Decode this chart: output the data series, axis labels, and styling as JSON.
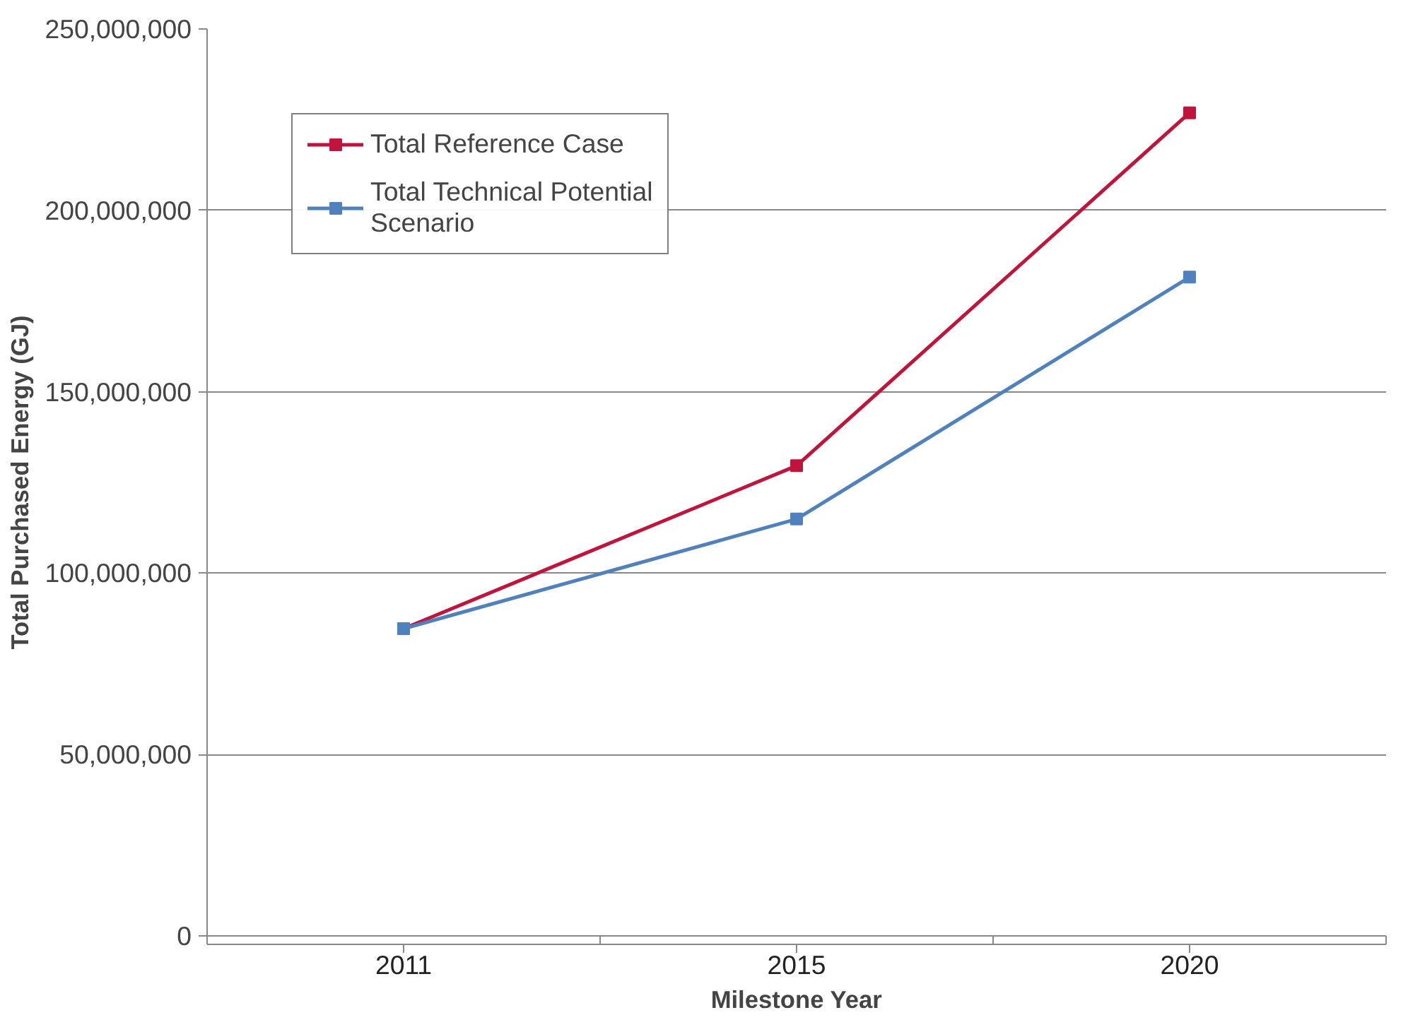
{
  "chart_data": {
    "type": "line",
    "xlabel": "Milestone Year",
    "ylabel": "Total Purchased Energy (GJ)",
    "categories": [
      "2011",
      "2015",
      "2020"
    ],
    "series": [
      {
        "name": "Total Reference Case",
        "color": "#c0143c",
        "values": [
          84700000,
          129600000,
          226900000
        ]
      },
      {
        "name": "Total Technical Potential Scenario",
        "color": "#4f81bd",
        "values": [
          84700000,
          114900000,
          181600000
        ]
      }
    ],
    "ylim": [
      0,
      250000000
    ],
    "yticks": [
      {
        "value": 0,
        "label": "0"
      },
      {
        "value": 50000000,
        "label": "50,000,000"
      },
      {
        "value": 100000000,
        "label": "100,000,000"
      },
      {
        "value": 150000000,
        "label": "150,000,000"
      },
      {
        "value": 200000000,
        "label": "200,000,000"
      },
      {
        "value": 250000000,
        "label": "250,000,000"
      }
    ],
    "grid": "y",
    "legend": "top left",
    "marker": "square",
    "line_style": "solid"
  }
}
